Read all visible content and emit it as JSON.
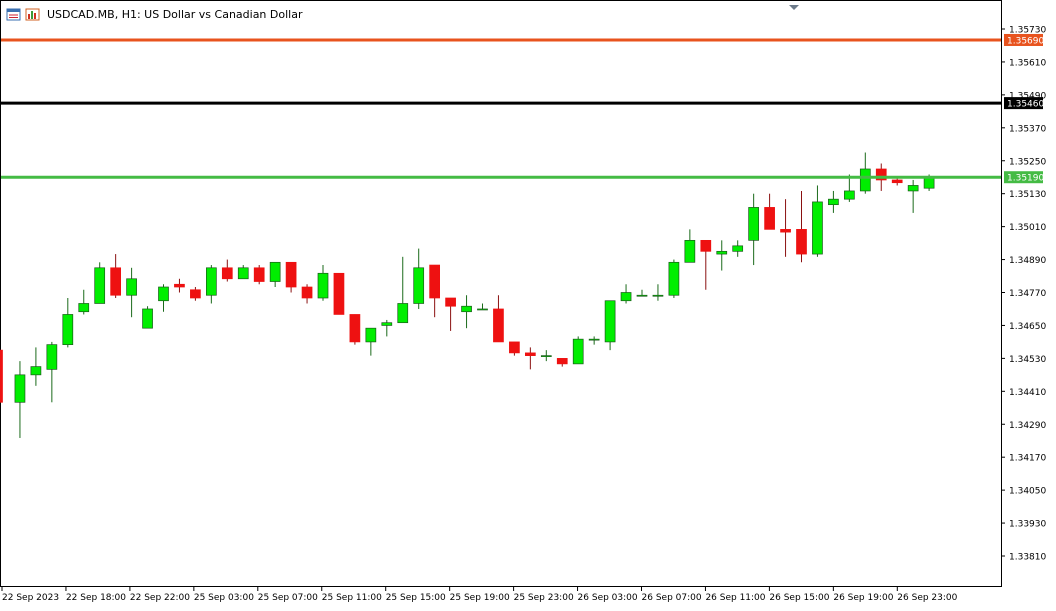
{
  "header": {
    "symbol_title": "USDCAD.MB, H1:  US Dollar vs Canadian Dollar",
    "icons": [
      "chart-window-icon",
      "chart-bars-icon"
    ]
  },
  "colors": {
    "bull": "#00ee00",
    "bear": "#ee1111",
    "candle_border": "#000000",
    "line_orange": "#e8531e",
    "line_black": "#000000",
    "line_green": "#44bb44"
  },
  "chart_data": {
    "type": "candlestick",
    "title": "USDCAD.MB, H1:  US Dollar vs Canadian Dollar",
    "timeframe": "H1",
    "ylim": [
      1.3373,
      1.358
    ],
    "y_ticks": [
      "1.35730",
      "1.35610",
      "1.35490",
      "1.35370",
      "1.35250",
      "1.35130",
      "1.35010",
      "1.34890",
      "1.34770",
      "1.34650",
      "1.34530",
      "1.34410",
      "1.34290",
      "1.34170",
      "1.34050",
      "1.33930",
      "1.33810"
    ],
    "x_ticks": [
      "22 Sep 2023",
      "22 Sep 18:00",
      "22 Sep 22:00",
      "25 Sep 03:00",
      "25 Sep 07:00",
      "25 Sep 11:00",
      "25 Sep 15:00",
      "25 Sep 19:00",
      "25 Sep 23:00",
      "26 Sep 03:00",
      "26 Sep 07:00",
      "26 Sep 11:00",
      "26 Sep 15:00",
      "26 Sep 19:00",
      "26 Sep 23:00"
    ],
    "horizontal_lines": [
      {
        "price": 1.3569,
        "label": "1.35690",
        "role": "orange"
      },
      {
        "price": 1.3546,
        "label": "1.35460",
        "role": "black"
      },
      {
        "price": 1.3519,
        "label": "1.35190",
        "role": "green"
      }
    ],
    "candles": [
      {
        "o": 1.3456,
        "h": 1.3456,
        "l": 1.3437,
        "c": 1.3437
      },
      {
        "o": 1.3437,
        "h": 1.3452,
        "l": 1.3424,
        "c": 1.3447
      },
      {
        "o": 1.3447,
        "h": 1.3457,
        "l": 1.3443,
        "c": 1.345
      },
      {
        "o": 1.3449,
        "h": 1.3459,
        "l": 1.3437,
        "c": 1.3458
      },
      {
        "o": 1.3458,
        "h": 1.3475,
        "l": 1.3457,
        "c": 1.3469
      },
      {
        "o": 1.347,
        "h": 1.3478,
        "l": 1.3469,
        "c": 1.3473
      },
      {
        "o": 1.3473,
        "h": 1.3488,
        "l": 1.3473,
        "c": 1.3486
      },
      {
        "o": 1.3486,
        "h": 1.3491,
        "l": 1.3475,
        "c": 1.3476
      },
      {
        "o": 1.3476,
        "h": 1.3486,
        "l": 1.3468,
        "c": 1.3482
      },
      {
        "o": 1.3464,
        "h": 1.3472,
        "l": 1.3464,
        "c": 1.3471
      },
      {
        "o": 1.3474,
        "h": 1.348,
        "l": 1.347,
        "c": 1.3479
      },
      {
        "o": 1.348,
        "h": 1.3482,
        "l": 1.3477,
        "c": 1.3479
      },
      {
        "o": 1.3478,
        "h": 1.3479,
        "l": 1.3474,
        "c": 1.3475
      },
      {
        "o": 1.3476,
        "h": 1.3487,
        "l": 1.3473,
        "c": 1.3486
      },
      {
        "o": 1.3486,
        "h": 1.3489,
        "l": 1.3481,
        "c": 1.3482
      },
      {
        "o": 1.3482,
        "h": 1.3487,
        "l": 1.3482,
        "c": 1.3486
      },
      {
        "o": 1.3486,
        "h": 1.3487,
        "l": 1.348,
        "c": 1.3481
      },
      {
        "o": 1.3481,
        "h": 1.3488,
        "l": 1.3479,
        "c": 1.3488
      },
      {
        "o": 1.3488,
        "h": 1.3488,
        "l": 1.3477,
        "c": 1.3479
      },
      {
        "o": 1.3479,
        "h": 1.348,
        "l": 1.3473,
        "c": 1.3475
      },
      {
        "o": 1.3475,
        "h": 1.3487,
        "l": 1.3474,
        "c": 1.3484
      },
      {
        "o": 1.3484,
        "h": 1.3484,
        "l": 1.3469,
        "c": 1.3469
      },
      {
        "o": 1.3469,
        "h": 1.3469,
        "l": 1.3458,
        "c": 1.3459
      },
      {
        "o": 1.3459,
        "h": 1.3464,
        "l": 1.3454,
        "c": 1.3464
      },
      {
        "o": 1.3465,
        "h": 1.3467,
        "l": 1.3461,
        "c": 1.3466
      },
      {
        "o": 1.3466,
        "h": 1.349,
        "l": 1.3466,
        "c": 1.3473
      },
      {
        "o": 1.3473,
        "h": 1.3493,
        "l": 1.3471,
        "c": 1.3486
      },
      {
        "o": 1.3487,
        "h": 1.3487,
        "l": 1.3468,
        "c": 1.3475
      },
      {
        "o": 1.3475,
        "h": 1.3475,
        "l": 1.3463,
        "c": 1.3472
      },
      {
        "o": 1.347,
        "h": 1.3476,
        "l": 1.3464,
        "c": 1.3472
      },
      {
        "o": 1.3471,
        "h": 1.3473,
        "l": 1.3471,
        "c": 1.3471
      },
      {
        "o": 1.3471,
        "h": 1.3476,
        "l": 1.3459,
        "c": 1.3459
      },
      {
        "o": 1.3459,
        "h": 1.3459,
        "l": 1.3454,
        "c": 1.3455
      },
      {
        "o": 1.3455,
        "h": 1.3457,
        "l": 1.3449,
        "c": 1.3454
      },
      {
        "o": 1.3454,
        "h": 1.3456,
        "l": 1.3452,
        "c": 1.3454
      },
      {
        "o": 1.3453,
        "h": 1.3453,
        "l": 1.345,
        "c": 1.3451
      },
      {
        "o": 1.3451,
        "h": 1.3461,
        "l": 1.3451,
        "c": 1.346
      },
      {
        "o": 1.346,
        "h": 1.3461,
        "l": 1.3458,
        "c": 1.346
      },
      {
        "o": 1.3459,
        "h": 1.3474,
        "l": 1.3456,
        "c": 1.3474
      },
      {
        "o": 1.3474,
        "h": 1.348,
        "l": 1.3473,
        "c": 1.3477
      },
      {
        "o": 1.3476,
        "h": 1.3478,
        "l": 1.3476,
        "c": 1.3476
      },
      {
        "o": 1.3476,
        "h": 1.348,
        "l": 1.3474,
        "c": 1.3476
      },
      {
        "o": 1.3476,
        "h": 1.3489,
        "l": 1.3475,
        "c": 1.3488
      },
      {
        "o": 1.3488,
        "h": 1.35,
        "l": 1.3488,
        "c": 1.3496
      },
      {
        "o": 1.3496,
        "h": 1.3496,
        "l": 1.3478,
        "c": 1.3492
      },
      {
        "o": 1.3491,
        "h": 1.3496,
        "l": 1.3485,
        "c": 1.3492
      },
      {
        "o": 1.3492,
        "h": 1.3496,
        "l": 1.349,
        "c": 1.3494
      },
      {
        "o": 1.3496,
        "h": 1.3513,
        "l": 1.3487,
        "c": 1.3508
      },
      {
        "o": 1.3508,
        "h": 1.3513,
        "l": 1.35,
        "c": 1.35
      },
      {
        "o": 1.35,
        "h": 1.3511,
        "l": 1.349,
        "c": 1.3499
      },
      {
        "o": 1.35,
        "h": 1.3514,
        "l": 1.3488,
        "c": 1.3491
      },
      {
        "o": 1.3491,
        "h": 1.3516,
        "l": 1.349,
        "c": 1.351
      },
      {
        "o": 1.3509,
        "h": 1.3514,
        "l": 1.3506,
        "c": 1.3511
      },
      {
        "o": 1.3511,
        "h": 1.352,
        "l": 1.351,
        "c": 1.3514
      },
      {
        "o": 1.3514,
        "h": 1.3528,
        "l": 1.3513,
        "c": 1.3522
      },
      {
        "o": 1.3522,
        "h": 1.3524,
        "l": 1.3514,
        "c": 1.3518
      },
      {
        "o": 1.3518,
        "h": 1.3519,
        "l": 1.3516,
        "c": 1.3517
      },
      {
        "o": 1.3514,
        "h": 1.3518,
        "l": 1.3506,
        "c": 1.3516
      },
      {
        "o": 1.3515,
        "h": 1.352,
        "l": 1.3514,
        "c": 1.3519
      }
    ]
  }
}
